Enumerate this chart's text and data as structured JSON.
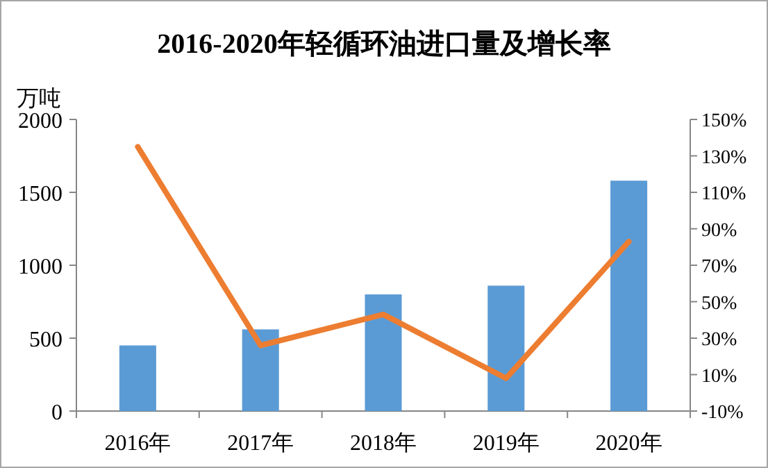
{
  "chart_data": {
    "type": "bar",
    "title": "2016-2020年轻循环油进口量及增长率",
    "ylabel": "万吨",
    "categories": [
      "2016年",
      "2017年",
      "2018年",
      "2019年",
      "2020年"
    ],
    "series": [
      {
        "color": "#5b9bd5",
        "values": [
          450,
          560,
          800,
          860,
          1580
        ]
      },
      {
        "type": "line",
        "axis": "y2",
        "color": "#ed7d31",
        "values": [
          135,
          26,
          43,
          8,
          83
        ]
      }
    ],
    "ylim": [
      0,
      2000
    ],
    "yticks": [
      0,
      500,
      1000,
      1500,
      2000
    ],
    "y2lim": [
      -10,
      150
    ],
    "y2ticks": [
      {
        "value": -10,
        "label": "-10%"
      },
      {
        "value": 10,
        "label": "10%"
      },
      {
        "value": 30,
        "label": "30%"
      },
      {
        "value": 50,
        "label": "50%"
      },
      {
        "value": 70,
        "label": "70%"
      },
      {
        "value": 90,
        "label": "90%"
      },
      {
        "value": 110,
        "label": "110%"
      },
      {
        "value": 130,
        "label": "130%"
      },
      {
        "value": 150,
        "label": "150%"
      }
    ]
  }
}
